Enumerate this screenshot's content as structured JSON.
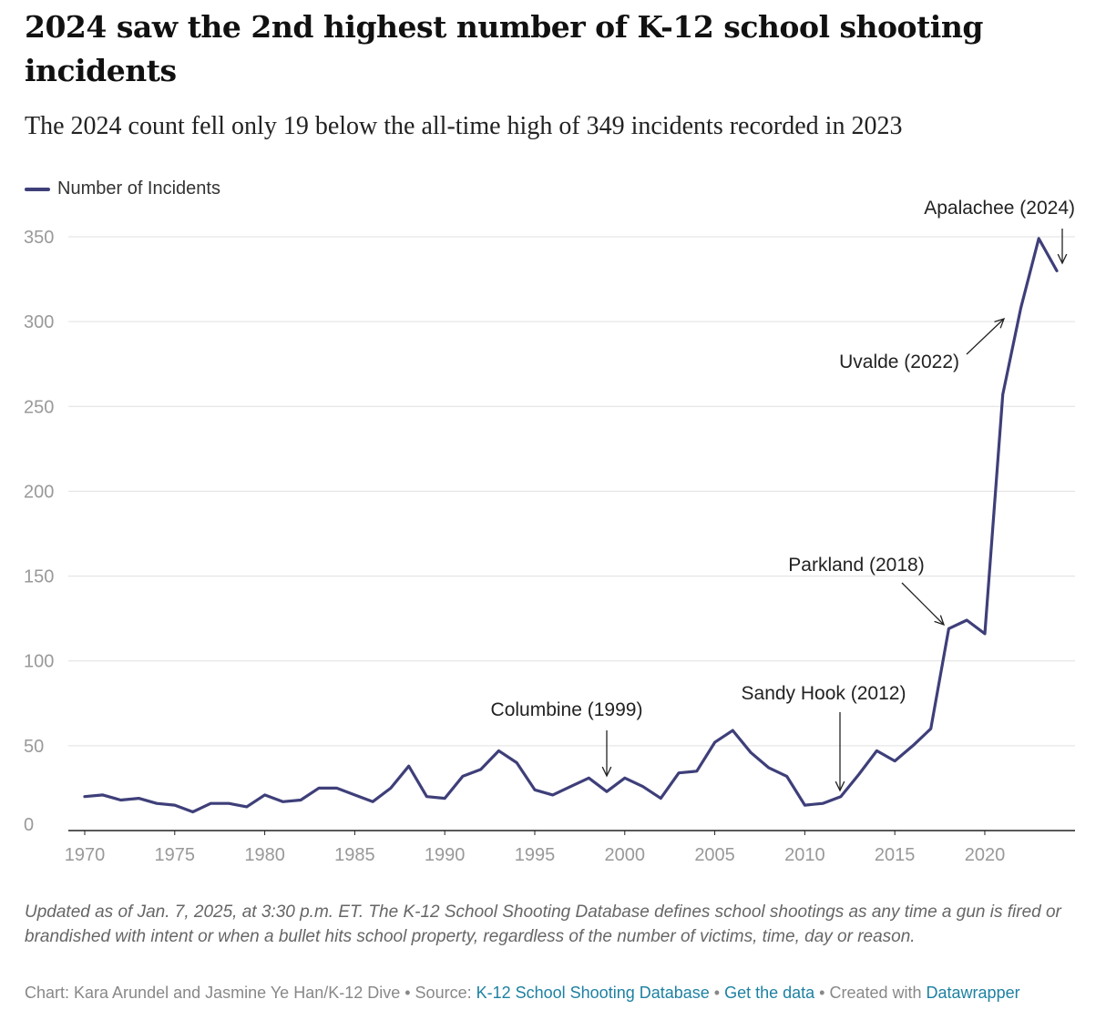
{
  "title": "2024 saw the 2nd highest number of K-12 school shooting incidents",
  "subtitle": "The 2024 count fell only 19 below the all-time high of 349 incidents recorded in 2023",
  "colors": {
    "line": "#3e3f79",
    "grid": "#e0e0e0",
    "axis": "#222222",
    "tick_text": "#999999",
    "link": "#1d81a2"
  },
  "chart_data": {
    "type": "line",
    "title": "2024 saw the 2nd highest number of K-12 school shooting incidents",
    "xlabel": "",
    "ylabel": "",
    "xlim": [
      1970,
      2024
    ],
    "ylim": [
      0,
      350
    ],
    "grid": true,
    "legend_position": "top-left",
    "x": [
      1970,
      1971,
      1972,
      1973,
      1974,
      1975,
      1976,
      1977,
      1978,
      1979,
      1980,
      1981,
      1982,
      1983,
      1984,
      1985,
      1986,
      1987,
      1988,
      1989,
      1990,
      1991,
      1992,
      1993,
      1994,
      1995,
      1996,
      1997,
      1998,
      1999,
      2000,
      2001,
      2002,
      2003,
      2004,
      2005,
      2006,
      2007,
      2008,
      2009,
      2010,
      2011,
      2012,
      2013,
      2014,
      2015,
      2016,
      2017,
      2018,
      2019,
      2020,
      2021,
      2022,
      2023,
      2024
    ],
    "series": [
      {
        "name": "Number of Incidents",
        "values": [
          20,
          21,
          18,
          19,
          16,
          15,
          11,
          16,
          16,
          14,
          21,
          17,
          18,
          25,
          25,
          21,
          17,
          25,
          38,
          20,
          19,
          32,
          36,
          47,
          40,
          24,
          21,
          26,
          31,
          23,
          31,
          26,
          19,
          34,
          35,
          52,
          59,
          46,
          37,
          32,
          15,
          16,
          20,
          33,
          47,
          41,
          50,
          60,
          119,
          124,
          116,
          257,
          308,
          349,
          330
        ]
      }
    ],
    "x_ticks": [
      "1970",
      "1975",
      "1980",
      "1985",
      "1990",
      "1995",
      "2000",
      "2005",
      "2010",
      "2015",
      "2020"
    ],
    "y_ticks": [
      "0",
      "50",
      "100",
      "150",
      "200",
      "250",
      "300",
      "350"
    ],
    "annotations": [
      {
        "label": "Columbine (1999)",
        "year": 1999
      },
      {
        "label": "Sandy Hook (2012)",
        "year": 2012
      },
      {
        "label": "Parkland (2018)",
        "year": 2018
      },
      {
        "label": "Uvalde (2022)",
        "year": 2022
      },
      {
        "label": "Apalachee (2024)",
        "year": 2024
      }
    ]
  },
  "note": "Updated as of Jan. 7, 2025, at 3:30 p.m. ET. The K-12 School Shooting Database defines school shootings as any time a gun is fired or brandished with intent or when a bullet hits school property, regardless of the number of victims, time, day or reason.",
  "footer": {
    "credit": "Chart: Kara Arundel and Jasmine Ye Han/K-12 Dive",
    "sep1": " • Source: ",
    "source_link": "K-12 School Shooting Database",
    "sep2": " • ",
    "data_link": "Get the data",
    "sep3": " • Created with ",
    "tool_link": "Datawrapper"
  }
}
